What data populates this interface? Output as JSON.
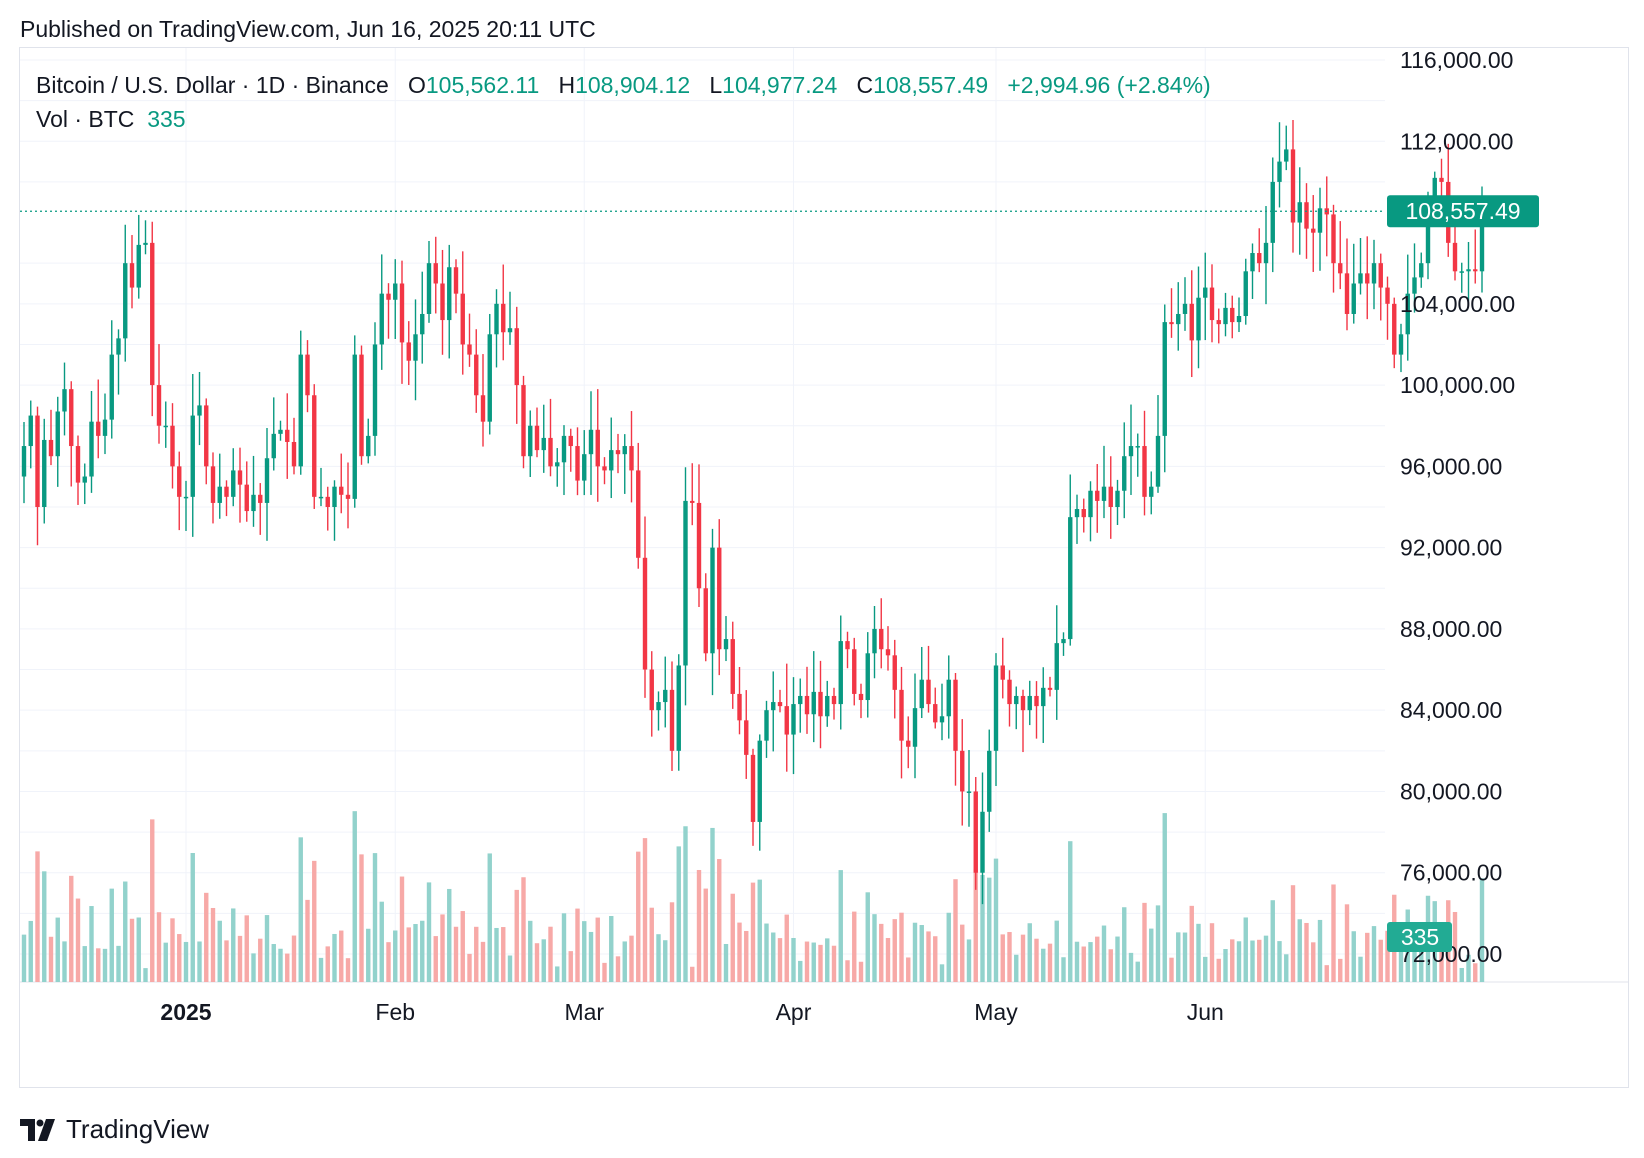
{
  "published": "Published on TradingView.com, Jun 16, 2025 20:11 UTC",
  "legend": {
    "symbol": "Bitcoin / U.S. Dollar · 1D · Binance",
    "open_label": "O",
    "open": "105,562.11",
    "high_label": "H",
    "high": "108,904.12",
    "low_label": "L",
    "low": "104,977.24",
    "close_label": "C",
    "close": "108,557.49",
    "change": "+2,994.96 (+2.84%)"
  },
  "volume_legend": {
    "label": "Vol · BTC",
    "value": "335"
  },
  "price_badge": "108,557.49",
  "volume_badge": "335",
  "footer_brand": "TradingView",
  "colors": {
    "up": "#089981",
    "down": "#f23645",
    "up_vol": "#92d2cc",
    "down_vol": "#f7a9a7",
    "grid": "#f0f3fa"
  },
  "chart_data": {
    "type": "candlestick",
    "title": "Bitcoin / U.S. Dollar · 1D · Binance",
    "ylim": [
      70000,
      117000
    ],
    "y_ticks": [
      116000,
      112000,
      104000,
      100000,
      96000,
      92000,
      88000,
      84000,
      80000,
      76000,
      72000
    ],
    "y_tick_labels": [
      "116,000.00",
      "112,000.00",
      "104,000.00",
      "100,000.00",
      "96,000.00",
      "92,000.00",
      "88,000.00",
      "84,000.00",
      "80,000.00",
      "76,000.00",
      "72,000.00"
    ],
    "x_ticks": [
      {
        "label": "2025",
        "index": 24,
        "bold": true
      },
      {
        "label": "Feb",
        "index": 55,
        "bold": false
      },
      {
        "label": "Mar",
        "index": 83,
        "bold": false
      },
      {
        "label": "Apr",
        "index": 114,
        "bold": false
      },
      {
        "label": "May",
        "index": 144,
        "bold": false
      },
      {
        "label": "Jun",
        "index": 175,
        "bold": false
      }
    ],
    "current_price": 108557.49,
    "close_series": [
      97000,
      98500,
      94000,
      97300,
      96500,
      98700,
      99800,
      97000,
      95200,
      95500,
      98200,
      97500,
      98300,
      101500,
      102300,
      106000,
      104800,
      106900,
      107000,
      100000,
      98000,
      98000,
      96000,
      94500,
      94500,
      98500,
      99000,
      96000,
      94200,
      95000,
      94500,
      95800,
      95100,
      93800,
      94600,
      94200,
      96400,
      97600,
      97800,
      97200,
      96000,
      101500,
      99500,
      94500,
      94500,
      94000,
      95000,
      94600,
      94400,
      101500,
      96500,
      97500,
      102000,
      104500,
      104200,
      105000,
      102100,
      101200,
      102500,
      103500,
      106000,
      105000,
      103200,
      105800,
      104500,
      102000,
      101500,
      99500,
      98200,
      102500,
      104000,
      102600,
      102800,
      100000,
      96500,
      98000,
      96800,
      97400,
      96000,
      96200,
      97500,
      97000,
      95300,
      96600,
      97800,
      96000,
      95800,
      96800,
      96600,
      97000,
      95800,
      91500,
      86000,
      84000,
      84400,
      85000,
      82000,
      86200,
      94300,
      94200,
      90000,
      86800,
      92000,
      87000,
      87500,
      84800,
      83500,
      81800,
      78500,
      82500,
      84000,
      84400,
      84200,
      82800,
      84300,
      84700,
      83800,
      84900,
      83700,
      84700,
      84300,
      87400,
      87000,
      84800,
      84500,
      86800,
      88000,
      87000,
      86700,
      85000,
      82500,
      82200,
      84100,
      85500,
      84300,
      83400,
      83700,
      85500,
      82000,
      80000,
      80000,
      76000,
      79000,
      82000,
      86200,
      85500,
      84300,
      84700,
      84000,
      84700,
      84200,
      85100,
      85000,
      87300,
      87500,
      93500,
      93900,
      93500,
      94800,
      94300,
      95000,
      94000,
      94800,
      96500,
      97000,
      97000,
      94500,
      95000,
      97500,
      103100,
      103000,
      103500,
      104000,
      102200,
      104300,
      104800,
      103200,
      103000,
      103800,
      103100,
      103400,
      105600,
      106500,
      106000,
      107000,
      110000,
      111000,
      111600,
      108000,
      109000,
      107700,
      107500,
      108700,
      108400,
      106000,
      105500,
      103500,
      105000,
      105500,
      105000,
      106000,
      104800,
      104000,
      101500,
      102500,
      104500,
      105300,
      106000,
      108500,
      110200,
      110000,
      107000,
      105600,
      105600,
      105700,
      105600,
      108557
    ]
  }
}
